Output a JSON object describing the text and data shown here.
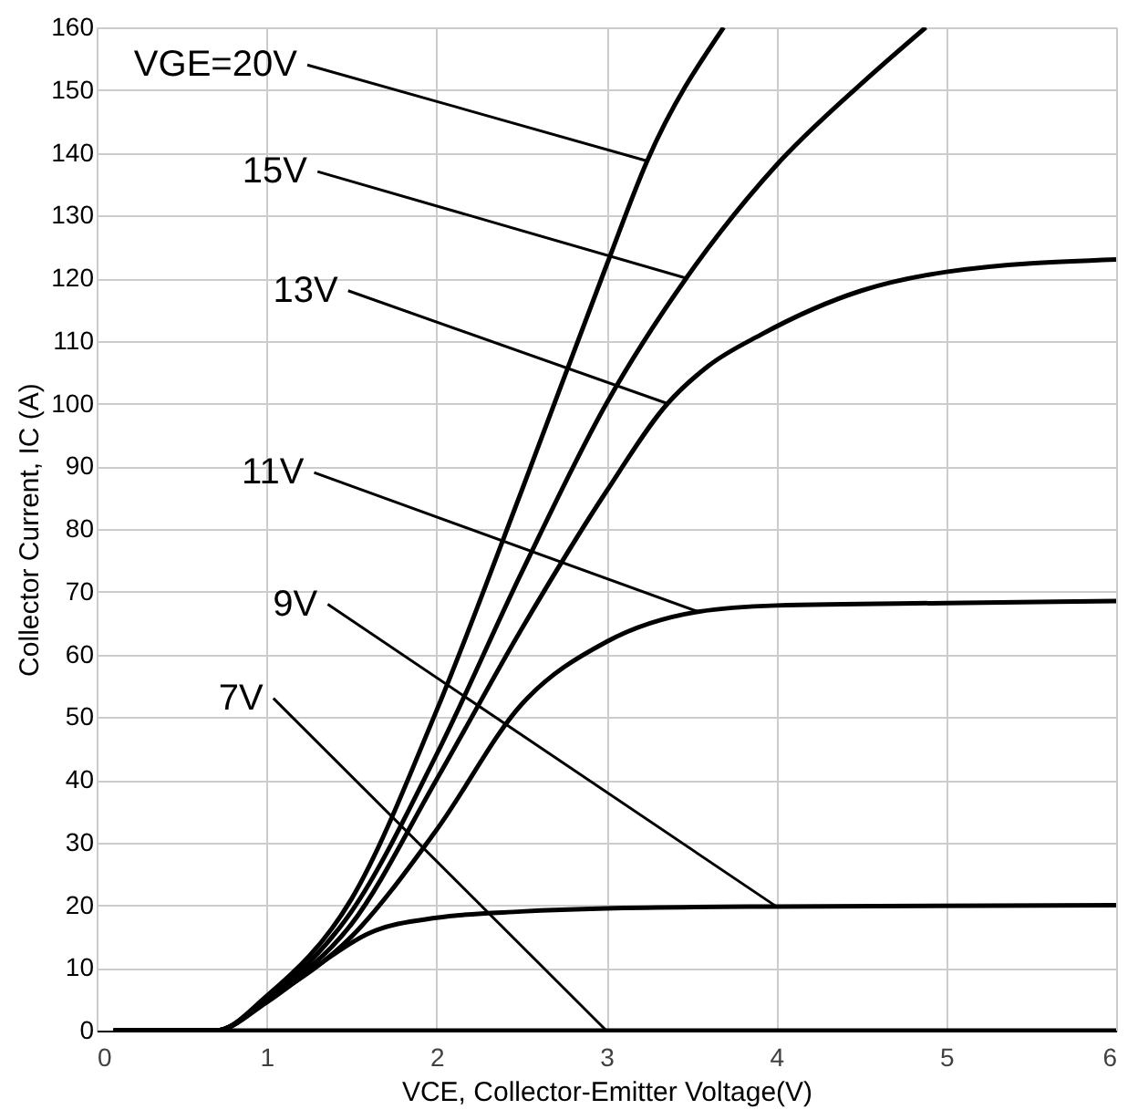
{
  "chart_data": {
    "type": "line",
    "xlabel": "VCE, Collector-Emitter Voltage(V)",
    "ylabel": "Collector Current, IC (A)",
    "xlim": [
      0,
      6
    ],
    "xticks": [
      0,
      1,
      2,
      3,
      4,
      5,
      6
    ],
    "ylim": [
      0,
      160
    ],
    "yticks": [
      0,
      10,
      20,
      30,
      40,
      50,
      60,
      70,
      80,
      90,
      100,
      110,
      120,
      130,
      140,
      150,
      160
    ],
    "grid": true,
    "marker": "none",
    "line_style": "solid",
    "series": [
      {
        "color": "#000000",
        "x": [
          0.1,
          0.7,
          1,
          1.5,
          2,
          2.5,
          3,
          3.24,
          3.69
        ],
        "values": [
          0,
          0,
          5.5,
          21,
          51,
          86,
          122,
          138.7,
          160
        ]
      },
      {
        "color": "#000000",
        "x": [
          0.1,
          0.7,
          1,
          1.5,
          2,
          2.5,
          3,
          3.47,
          4,
          4.5,
          4.88
        ],
        "values": [
          0,
          0,
          5,
          19,
          44,
          73,
          100,
          120,
          138,
          151,
          160
        ]
      },
      {
        "color": "#000000",
        "x": [
          0.1,
          0.7,
          1,
          1.5,
          2,
          2.5,
          3,
          3.36,
          3.6,
          3.91,
          4.5,
          5,
          6
        ],
        "values": [
          0,
          0,
          5,
          17,
          40,
          64,
          86,
          100,
          106,
          111,
          118,
          121,
          123
        ]
      },
      {
        "color": "#000000",
        "x": [
          0.1,
          0.7,
          1,
          1.5,
          2,
          2.5,
          3,
          3.54,
          4,
          5,
          6
        ],
        "values": [
          0,
          0,
          4.8,
          15,
          32,
          52,
          62,
          66.8,
          67.8,
          68.2,
          68.5
        ]
      },
      {
        "color": "#000000",
        "x": [
          0.1,
          0.7,
          1,
          1.28,
          1.6,
          2,
          2.5,
          3,
          4,
          6
        ],
        "values": [
          0,
          0,
          4.5,
          10,
          15.5,
          18,
          19,
          19.5,
          19.8,
          20
        ]
      },
      {
        "color": "#000000",
        "x": [
          0.1,
          3,
          6
        ],
        "values": [
          0,
          0,
          0
        ]
      }
    ],
    "annotations": [
      {
        "text": "VGE=20V",
        "x": 3.24,
        "y": 138.7
      },
      {
        "text": "15V",
        "x": 3.47,
        "y": 120
      },
      {
        "text": "13V",
        "x": 3.36,
        "y": 100
      },
      {
        "text": "11V",
        "x": 3.54,
        "y": 66.8
      },
      {
        "text": "9V",
        "x": 4,
        "y": 19.8
      },
      {
        "text": "7V",
        "x": 3,
        "y": 0
      }
    ]
  }
}
